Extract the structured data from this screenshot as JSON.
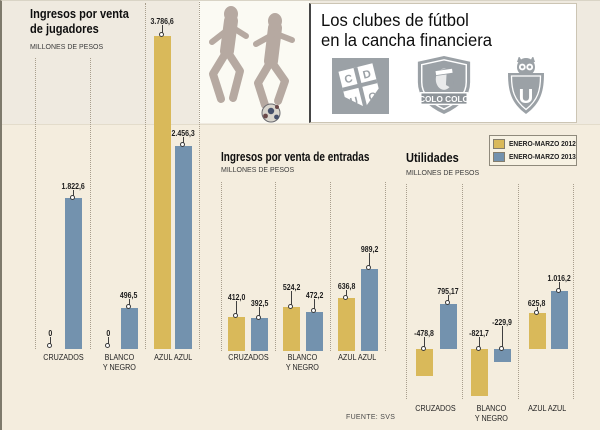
{
  "header": {
    "title_line1": "Los clubes de fútbol",
    "title_line2": "en la cancha financiera",
    "logos": [
      {
        "name": "cduc-crest",
        "letters": [
          "C",
          "D",
          "U",
          "C"
        ]
      },
      {
        "name": "colo-colo-crest",
        "banner": "COLO COLO"
      },
      {
        "name": "u-de-chile-crest",
        "letter": "U"
      }
    ]
  },
  "legend": {
    "items": [
      {
        "label": "ENERO-MARZO 2012",
        "color": "#d9b95a"
      },
      {
        "label": "ENERO-MARZO 2013",
        "color": "#7392ae"
      }
    ]
  },
  "footer": {
    "source": "FUENTE: SVS"
  },
  "chart_data": [
    {
      "type": "bar",
      "title": "Ingresos por venta de jugadores",
      "title_lines": [
        "Ingresos por venta",
        "de jugadores"
      ],
      "subtitle": "MILLONES DE PESOS",
      "categories": [
        "CRUZADOS",
        "BLANCO Y NEGRO",
        "AZUL AZUL"
      ],
      "categories_display": [
        [
          "CRUZADOS"
        ],
        [
          "BLANCO",
          "Y NEGRO"
        ],
        [
          "AZUL AZUL"
        ]
      ],
      "series": [
        {
          "name": "ENERO-MARZO 2012",
          "color": "#d9b95a",
          "values": [
            0,
            0,
            3786.6
          ],
          "labels": [
            "0",
            "0",
            "3.786,6"
          ]
        },
        {
          "name": "ENERO-MARZO 2013",
          "color": "#7392ae",
          "values": [
            1822.6,
            496.5,
            2456.3
          ],
          "labels": [
            "1.822,6",
            "496,5",
            "2.456,3"
          ]
        }
      ],
      "ylim": [
        0,
        3786.6
      ],
      "grid": "dotted-vertical"
    },
    {
      "type": "bar",
      "title": "Ingresos por venta de entradas",
      "title_lines": [
        "Ingresos por venta de entradas"
      ],
      "subtitle": "MILLONES DE PESOS",
      "categories": [
        "CRUZADOS",
        "BLANCO Y NEGRO",
        "AZUL AZUL"
      ],
      "categories_display": [
        [
          "CRUZADOS"
        ],
        [
          "BLANCO",
          "Y NEGRO"
        ],
        [
          "AZUL AZUL"
        ]
      ],
      "series": [
        {
          "name": "ENERO-MARZO 2012",
          "color": "#d9b95a",
          "values": [
            412.0,
            524.2,
            636.8
          ],
          "labels": [
            "412,0",
            "524,2",
            "636,8"
          ]
        },
        {
          "name": "ENERO-MARZO 2013",
          "color": "#7392ae",
          "values": [
            392.5,
            472.2,
            989.2
          ],
          "labels": [
            "392,5",
            "472,2",
            "989,2"
          ]
        }
      ],
      "ylim": [
        0,
        989.2
      ],
      "grid": "dotted-vertical"
    },
    {
      "type": "bar",
      "title": "Utilidades",
      "title_lines": [
        "Utilidades"
      ],
      "subtitle": "MILLONES DE PESOS",
      "categories": [
        "CRUZADOS",
        "BLANCO Y NEGRO",
        "AZUL AZUL"
      ],
      "categories_display": [
        [
          "CRUZADOS"
        ],
        [
          "BLANCO",
          "Y NEGRO"
        ],
        [
          "AZUL AZUL"
        ]
      ],
      "series": [
        {
          "name": "ENERO-MARZO 2012",
          "color": "#d9b95a",
          "values": [
            -478.8,
            -821.7,
            625.8
          ],
          "labels": [
            "-478,8",
            "-821,7",
            "625,8"
          ]
        },
        {
          "name": "ENERO-MARZO 2013",
          "color": "#7392ae",
          "values": [
            795.17,
            -229.9,
            1016.2
          ],
          "labels": [
            "795,17",
            "-229,9",
            "1.016,2"
          ]
        }
      ],
      "ylim": [
        -821.7,
        1016.2
      ],
      "grid": "dotted-vertical"
    }
  ]
}
